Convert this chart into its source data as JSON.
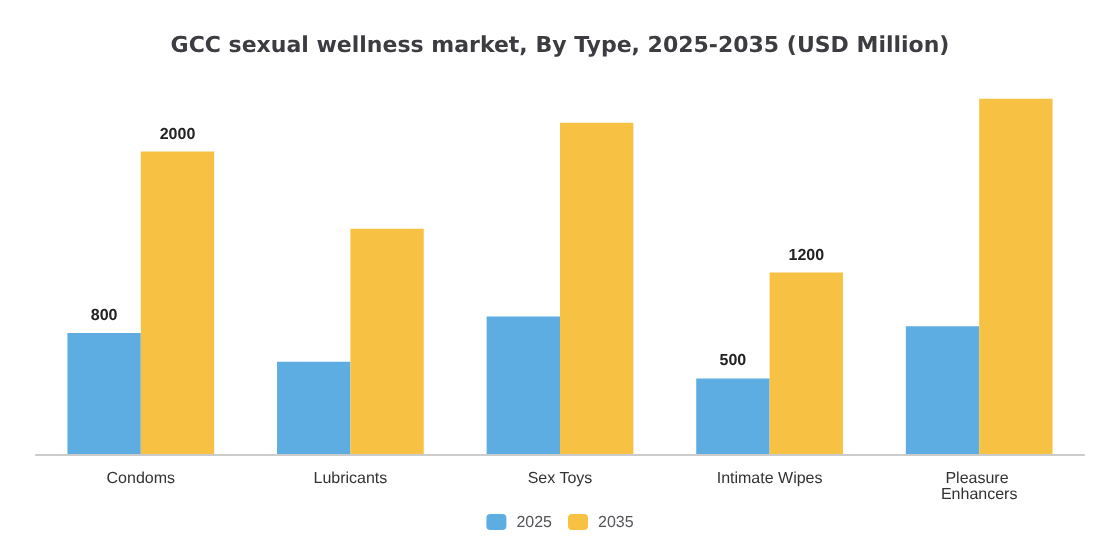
{
  "chart_data": {
    "type": "bar",
    "title": "GCC sexual wellness market, By Type, 2025-2035 (USD Million)",
    "categories": [
      "Condoms",
      "Lubricants",
      "Sex Toys",
      "Intimate Wipes",
      "Pleasure Enhancers"
    ],
    "series": [
      {
        "name": "2025",
        "color": "#5dade2",
        "values": [
          800,
          610,
          910,
          500,
          845
        ],
        "value_labels": [
          "800",
          null,
          null,
          "500",
          null
        ]
      },
      {
        "name": "2035",
        "color": "#f7c244",
        "values": [
          2000,
          1490,
          2190,
          1200,
          2350
        ],
        "value_labels": [
          "2000",
          null,
          null,
          "1200",
          null
        ]
      }
    ],
    "legend": "bottom",
    "grid": false
  }
}
